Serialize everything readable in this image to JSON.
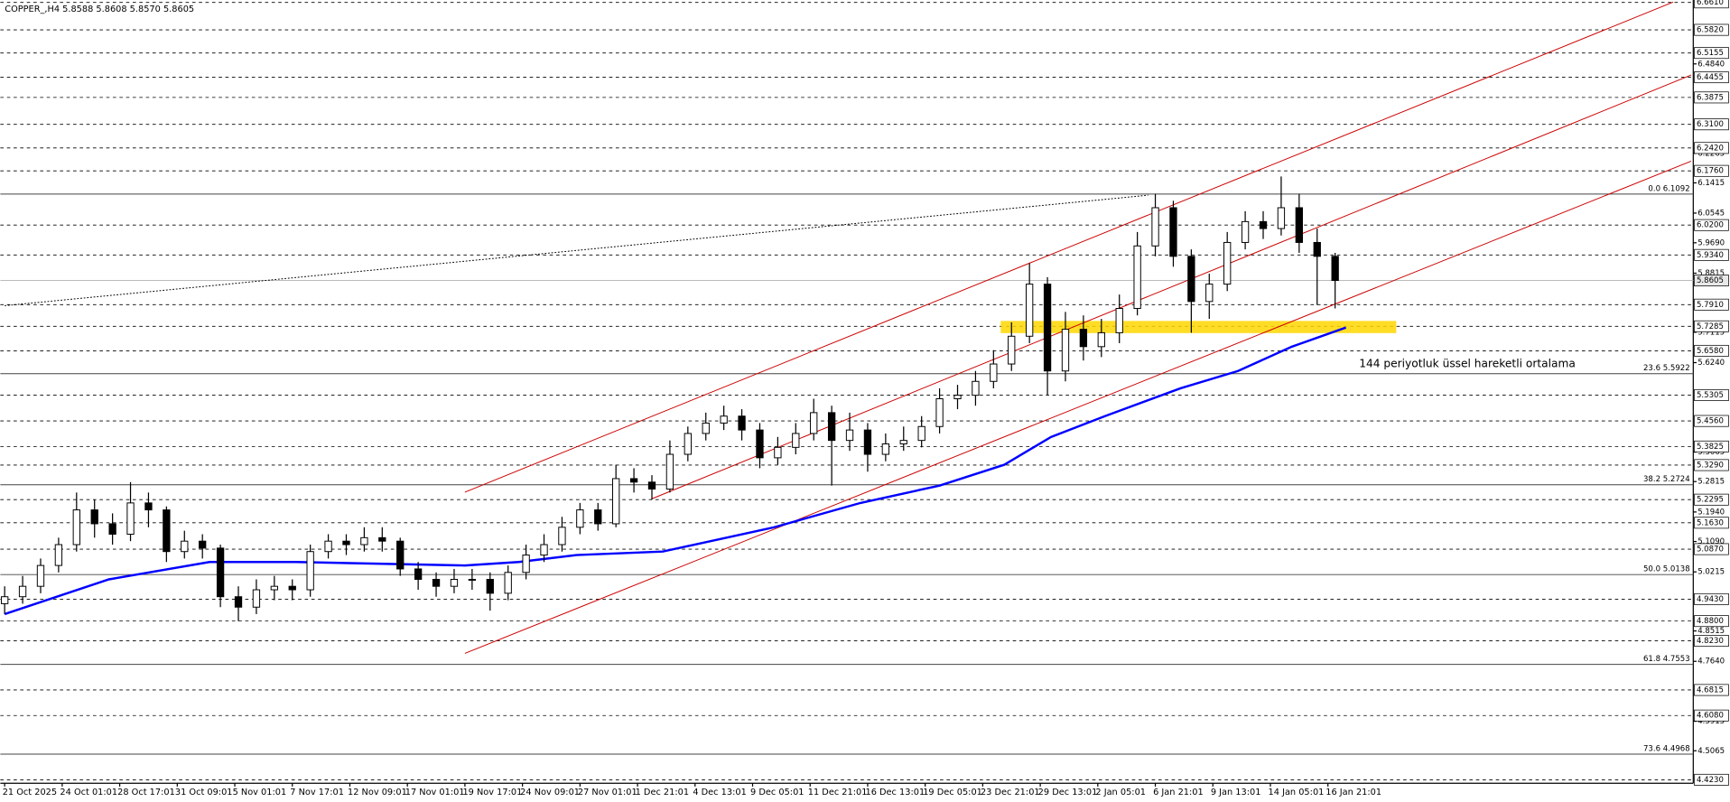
{
  "chart_data": {
    "type": "candlestick",
    "title": "COPPER_,H4 5.8588 5.8608 5.8570 5.8605",
    "xlim": [
      -1.2,
      469.6
    ],
    "ylim": [
      4.413,
      6.668
    ],
    "xticks": [
      {
        "value": 0,
        "label": "21 Oct 2025"
      },
      {
        "value": 16,
        "label": "24 Oct 01:01"
      },
      {
        "value": 32,
        "label": "28 Oct 17:01"
      },
      {
        "value": 48,
        "label": "31 Oct 09:01"
      },
      {
        "value": 64,
        "label": "5 Nov 01:01"
      },
      {
        "value": 80,
        "label": "7 Nov 17:01"
      },
      {
        "value": 96,
        "label": "12 Nov 09:01"
      },
      {
        "value": 112,
        "label": "17 Nov 01:01"
      },
      {
        "value": 128,
        "label": "19 Nov 17:01"
      },
      {
        "value": 144,
        "label": "24 Nov 09:01"
      },
      {
        "value": 160,
        "label": "27 Nov 01:01"
      },
      {
        "value": 176,
        "label": "1 Dec 21:01"
      },
      {
        "value": 192,
        "label": "4 Dec 13:01"
      },
      {
        "value": 208,
        "label": "9 Dec 05:01"
      },
      {
        "value": 224,
        "label": "11 Dec 21:01"
      },
      {
        "value": 240,
        "label": "16 Dec 13:01"
      },
      {
        "value": 256,
        "label": "19 Dec 05:01"
      },
      {
        "value": 272,
        "label": "23 Dec 21:01"
      },
      {
        "value": 288,
        "label": "29 Dec 13:01"
      },
      {
        "value": 304,
        "label": "2 Jan 05:01"
      },
      {
        "value": 320,
        "label": "6 Jan 21:01"
      },
      {
        "value": 336,
        "label": "9 Jan 13:01"
      },
      {
        "value": 352,
        "label": "14 Jan 05:01"
      },
      {
        "value": 368,
        "label": "16 Jan 21:01"
      }
    ],
    "yticks": [
      {
        "value": 6.484,
        "label": "6.4840"
      },
      {
        "value": 6.2265,
        "label": "6.2265"
      },
      {
        "value": 6.1415,
        "label": "6.1415"
      },
      {
        "value": 6.0545,
        "label": "6.0545"
      },
      {
        "value": 5.969,
        "label": "5.9690"
      },
      {
        "value": 5.8815,
        "label": "5.8815"
      },
      {
        "value": 5.7115,
        "label": "5.7115"
      },
      {
        "value": 5.624,
        "label": "5.6240"
      },
      {
        "value": 5.3665,
        "label": "5.3665"
      },
      {
        "value": 5.2815,
        "label": "5.2815"
      },
      {
        "value": 5.194,
        "label": "5.1940"
      },
      {
        "value": 5.109,
        "label": "5.1090"
      },
      {
        "value": 5.0215,
        "label": "5.0215"
      },
      {
        "value": 4.8515,
        "label": "4.8515"
      },
      {
        "value": 4.764,
        "label": "4.7640"
      },
      {
        "value": 4.5915,
        "label": "4.5915"
      },
      {
        "value": 4.5065,
        "label": "4.5065"
      }
    ],
    "levels": [
      {
        "value": 6.661,
        "label": "6.6610"
      },
      {
        "value": 6.582,
        "label": "6.5820"
      },
      {
        "value": 6.5155,
        "label": "6.5155"
      },
      {
        "value": 6.4455,
        "label": "6.4455"
      },
      {
        "value": 6.3875,
        "label": "6.3875"
      },
      {
        "value": 6.31,
        "label": "6.3100"
      },
      {
        "value": 6.242,
        "label": "6.2420"
      },
      {
        "value": 6.176,
        "label": "6.1760"
      },
      {
        "value": 6.02,
        "label": "6.0200"
      },
      {
        "value": 5.934,
        "label": "5.9340"
      },
      {
        "value": 5.791,
        "label": "5.7910"
      },
      {
        "value": 5.7285,
        "label": "5.7285"
      },
      {
        "value": 5.658,
        "label": "5.6580"
      },
      {
        "value": 5.5305,
        "label": "5.5305"
      },
      {
        "value": 5.456,
        "label": "5.4560"
      },
      {
        "value": 5.3825,
        "label": "5.3825"
      },
      {
        "value": 5.329,
        "label": "5.3290"
      },
      {
        "value": 5.2295,
        "label": "5.2295"
      },
      {
        "value": 5.163,
        "label": "5.1630"
      },
      {
        "value": 5.087,
        "label": "5.0870"
      },
      {
        "value": 4.943,
        "label": "4.9430"
      },
      {
        "value": 4.88,
        "label": "4.8800"
      },
      {
        "value": 4.823,
        "label": "4.8230"
      },
      {
        "value": 4.6815,
        "label": "4.6815"
      },
      {
        "value": 4.608,
        "label": "4.6080"
      },
      {
        "value": 4.423,
        "label": "4.4230"
      }
    ],
    "fibonacci": [
      {
        "value": 6.1092,
        "label": "0.0 6.1092"
      },
      {
        "value": 5.5922,
        "label": "23.6 5.5922"
      },
      {
        "value": 5.2724,
        "label": "38.2 5.2724"
      },
      {
        "value": 5.0138,
        "label": "50.0 5.0138"
      },
      {
        "value": 4.7553,
        "label": "61.8 4.7553"
      },
      {
        "value": 4.4968,
        "label": "73.6 4.4968"
      }
    ],
    "current_price": {
      "value": 5.8605,
      "label": "5.8605"
    },
    "series": [
      {
        "up_color": "#ffffff",
        "down_color": "#000000",
        "x": [
          0,
          5,
          10,
          15,
          20,
          25,
          30,
          35,
          40,
          45,
          50,
          55,
          60,
          65,
          70,
          75,
          80,
          85,
          90,
          95,
          100,
          105,
          110,
          115,
          120,
          125,
          130,
          135,
          140,
          145,
          150,
          155,
          160,
          165,
          170,
          175,
          180,
          185,
          190,
          195,
          200,
          205,
          210,
          215,
          220,
          225,
          230,
          235,
          240,
          245,
          250,
          255,
          260,
          265,
          270,
          275,
          280,
          285,
          290,
          295,
          300,
          305,
          310,
          315,
          320,
          325,
          330,
          335,
          340,
          345,
          350,
          355,
          360,
          365,
          370
        ],
        "open": [
          4.93,
          4.95,
          4.98,
          5.04,
          5.1,
          5.2,
          5.16,
          5.13,
          5.22,
          5.2,
          5.08,
          5.11,
          5.09,
          4.95,
          4.92,
          4.97,
          4.98,
          4.97,
          5.08,
          5.11,
          5.1,
          5.12,
          5.11,
          5.03,
          5.0,
          4.98,
          5.0,
          5.0,
          4.96,
          5.02,
          5.07,
          5.1,
          5.15,
          5.2,
          5.16,
          5.29,
          5.28,
          5.26,
          5.36,
          5.42,
          5.45,
          5.47,
          5.43,
          5.35,
          5.38,
          5.42,
          5.48,
          5.4,
          5.43,
          5.36,
          5.39,
          5.4,
          5.44,
          5.52,
          5.53,
          5.57,
          5.62,
          5.7,
          5.85,
          5.6,
          5.72,
          5.67,
          5.71,
          5.78,
          5.96,
          6.07,
          5.93,
          5.8,
          5.85,
          5.97,
          6.03,
          6.01,
          6.07,
          5.97,
          5.93
        ],
        "high": [
          4.98,
          5.01,
          5.06,
          5.12,
          5.25,
          5.23,
          5.19,
          5.28,
          5.25,
          5.21,
          5.14,
          5.13,
          5.1,
          4.98,
          5.0,
          5.01,
          5.0,
          5.1,
          5.13,
          5.13,
          5.15,
          5.15,
          5.12,
          5.05,
          5.02,
          5.03,
          5.03,
          5.02,
          5.04,
          5.1,
          5.13,
          5.18,
          5.22,
          5.22,
          5.33,
          5.32,
          5.3,
          5.4,
          5.44,
          5.48,
          5.5,
          5.49,
          5.45,
          5.41,
          5.45,
          5.52,
          5.5,
          5.48,
          5.45,
          5.42,
          5.44,
          5.47,
          5.55,
          5.56,
          5.6,
          5.66,
          5.74,
          5.91,
          5.87,
          5.77,
          5.76,
          5.75,
          5.82,
          6.0,
          6.11,
          6.09,
          5.95,
          5.88,
          6.0,
          6.06,
          6.06,
          6.16,
          6.11,
          6.01,
          5.94
        ],
        "low": [
          4.9,
          4.93,
          4.96,
          5.02,
          5.08,
          5.12,
          5.1,
          5.11,
          5.15,
          5.05,
          5.06,
          5.06,
          4.92,
          4.88,
          4.9,
          4.94,
          4.94,
          4.95,
          5.06,
          5.07,
          5.08,
          5.08,
          5.01,
          4.97,
          4.95,
          4.96,
          4.97,
          4.91,
          4.94,
          5.0,
          5.05,
          5.08,
          5.13,
          5.14,
          5.15,
          5.25,
          5.23,
          5.25,
          5.34,
          5.4,
          5.43,
          5.4,
          5.32,
          5.33,
          5.36,
          5.4,
          5.27,
          5.37,
          5.31,
          5.34,
          5.37,
          5.38,
          5.42,
          5.49,
          5.5,
          5.55,
          5.6,
          5.68,
          5.53,
          5.57,
          5.63,
          5.64,
          5.68,
          5.76,
          5.93,
          5.9,
          5.71,
          5.75,
          5.83,
          5.95,
          5.98,
          5.99,
          5.94,
          5.79,
          5.78
        ],
        "close": [
          4.95,
          4.98,
          5.04,
          5.1,
          5.2,
          5.16,
          5.13,
          5.22,
          5.2,
          5.08,
          5.11,
          5.09,
          4.95,
          4.92,
          4.97,
          4.98,
          4.97,
          5.08,
          5.11,
          5.1,
          5.12,
          5.11,
          5.03,
          5.0,
          4.98,
          5.0,
          5.0,
          4.96,
          5.02,
          5.07,
          5.1,
          5.15,
          5.2,
          5.16,
          5.29,
          5.28,
          5.26,
          5.36,
          5.42,
          5.45,
          5.47,
          5.43,
          5.35,
          5.38,
          5.42,
          5.48,
          5.4,
          5.43,
          5.36,
          5.39,
          5.4,
          5.44,
          5.52,
          5.53,
          5.57,
          5.62,
          5.7,
          5.85,
          5.6,
          5.72,
          5.67,
          5.71,
          5.78,
          5.96,
          6.07,
          5.93,
          5.8,
          5.85,
          5.97,
          6.03,
          6.01,
          6.07,
          5.97,
          5.93,
          5.8605
        ]
      }
    ],
    "ema": {
      "name": "144 periyotluk üssel hareketli ortalama",
      "color": "#0000ff",
      "x": [
        0,
        29,
        57,
        81,
        128,
        143,
        159,
        183,
        214,
        238,
        260,
        278,
        291,
        306,
        327,
        343,
        358,
        373
      ],
      "values": [
        4.9,
        5.0,
        5.05,
        5.05,
        5.04,
        5.05,
        5.07,
        5.08,
        5.15,
        5.22,
        5.27,
        5.33,
        5.41,
        5.47,
        5.55,
        5.6,
        5.67,
        5.725
      ]
    },
    "trendlines": [
      {
        "color": "#cc0000",
        "x": [
          128,
          464
        ],
        "y": [
          5.251,
          6.662
        ]
      },
      {
        "color": "#cc0000",
        "x": [
          180,
          469
        ],
        "y": [
          5.232,
          6.452
        ]
      },
      {
        "color": "#cc0000",
        "x": [
          128,
          469
        ],
        "y": [
          4.787,
          6.204
        ]
      },
      {
        "color": "#000000",
        "x": [
          0,
          318
        ],
        "y": [
          5.788,
          6.106
        ]
      }
    ],
    "zone": {
      "color": "#ffd700",
      "x": [
        277,
        387
      ],
      "y": [
        5.709,
        5.744
      ]
    }
  }
}
